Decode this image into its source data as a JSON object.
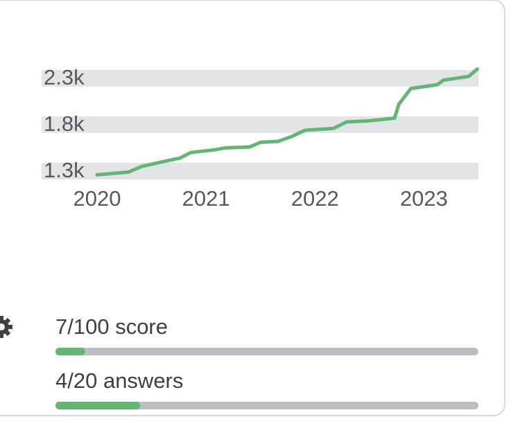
{
  "chart_data": {
    "type": "line",
    "x": [
      2020.0,
      2020.29,
      2020.41,
      2020.6,
      2020.76,
      2020.86,
      2021.08,
      2021.18,
      2021.4,
      2021.5,
      2021.66,
      2021.78,
      2021.91,
      2022.17,
      2022.29,
      2022.48,
      2022.73,
      2022.77,
      2022.88,
      2023.12,
      2023.18,
      2023.41,
      2023.49
    ],
    "series": [
      {
        "color": "#63b475",
        "values": [
          1260,
          1290,
          1350,
          1400,
          1440,
          1500,
          1530,
          1550,
          1560,
          1610,
          1620,
          1670,
          1740,
          1760,
          1830,
          1840,
          1870,
          2020,
          2190,
          2230,
          2280,
          2320,
          2400
        ]
      }
    ],
    "xlim": [
      2020,
      2023.5
    ],
    "xticks": [
      2020,
      2021,
      2022,
      2023
    ],
    "ylim": [
      1200,
      2400
    ],
    "yticks": [
      {
        "value": 1300,
        "label": "1.3k"
      },
      {
        "value": 1800,
        "label": "1.8k"
      },
      {
        "value": 2300,
        "label": "2.3k"
      }
    ],
    "grid": true,
    "grid_color": "#e3e4e5"
  },
  "progress": [
    {
      "label": "7/100 score",
      "value": 7,
      "max": 100,
      "color": "#63b475"
    },
    {
      "label": "4/20 answers",
      "value": 4,
      "max": 20,
      "color": "#63b475"
    }
  ]
}
